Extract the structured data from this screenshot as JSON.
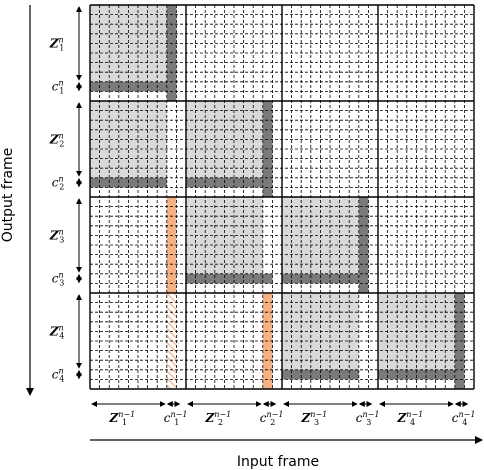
{
  "diagram": {
    "x_axis_title": "Input frame",
    "y_axis_title": "Output frame",
    "n_blocks": 4,
    "cells_per_block": 10,
    "row_labels": [
      {
        "main": "Z",
        "sub": "1",
        "sup": "n",
        "c_main": "c",
        "c_sub": "1",
        "c_sup": "n"
      },
      {
        "main": "Z",
        "sub": "2",
        "sup": "n",
        "c_main": "c",
        "c_sub": "2",
        "c_sup": "n"
      },
      {
        "main": "Z",
        "sub": "3",
        "sup": "n",
        "c_main": "c",
        "c_sub": "3",
        "c_sup": "n"
      },
      {
        "main": "Z",
        "sub": "4",
        "sup": "n",
        "c_main": "c",
        "c_sub": "4",
        "c_sup": "n"
      }
    ],
    "col_labels": [
      {
        "main": "Z",
        "sub": "1",
        "sup": "n−1",
        "c_main": "c",
        "c_sub": "1",
        "c_sup": "n−1"
      },
      {
        "main": "Z",
        "sub": "2",
        "sup": "n−1",
        "c_main": "c",
        "c_sub": "2",
        "c_sup": "n−1"
      },
      {
        "main": "Z",
        "sub": "3",
        "sup": "n−1",
        "c_main": "c",
        "c_sub": "3",
        "c_sup": "n−1"
      },
      {
        "main": "Z",
        "sub": "4",
        "sup": "n−1",
        "c_main": "c",
        "c_sub": "4",
        "c_sup": "n−1"
      }
    ],
    "colors": {
      "light_gray": "#d9d9d9",
      "dark_gray": "#7a7a7a",
      "orange": "#f4b183",
      "hatch_orange": "#f4b183",
      "grid_dash": "#000000",
      "grid_solid": "#000000"
    }
  }
}
